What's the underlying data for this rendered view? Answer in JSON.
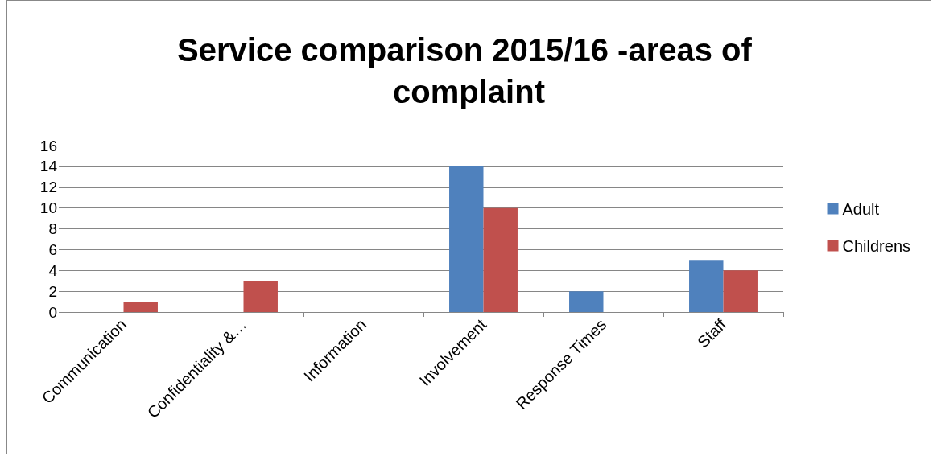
{
  "chart_data": {
    "type": "bar",
    "title": "Service comparison 2015/16 -areas of complaint",
    "categories": [
      "Communication",
      "Confidentiality &…",
      "Information",
      "Involvement",
      "Response Times",
      "Staff"
    ],
    "series": [
      {
        "name": "Adult",
        "color": "#4f81bd",
        "values": [
          0,
          0,
          0,
          14,
          2,
          5
        ]
      },
      {
        "name": "Childrens",
        "color": "#c0504d",
        "values": [
          1,
          3,
          0,
          10,
          0,
          4
        ]
      }
    ],
    "ylim": [
      0,
      16
    ],
    "yticks": [
      0,
      2,
      4,
      6,
      8,
      10,
      12,
      14,
      16
    ],
    "grid": "y",
    "legend": "right"
  }
}
